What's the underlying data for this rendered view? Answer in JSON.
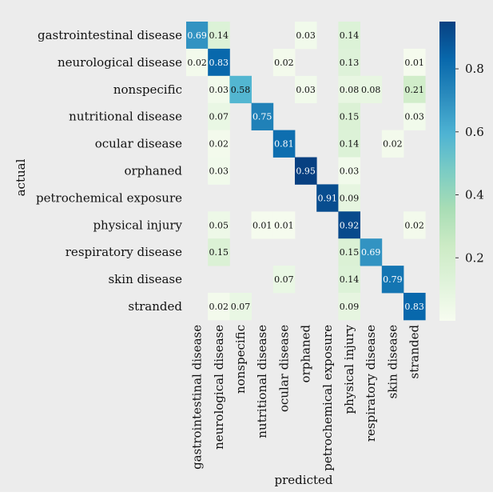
{
  "chart_data": {
    "type": "heatmap",
    "title": "",
    "xlabel": "predicted",
    "ylabel": "actual",
    "rows": [
      "gastrointestinal disease",
      "neurological disease",
      "nonspecific",
      "nutritional disease",
      "ocular disease",
      "orphaned",
      "petrochemical exposure",
      "physical injury",
      "respiratory disease",
      "skin disease",
      "stranded"
    ],
    "columns": [
      "gastrointestinal disease",
      "neurological disease",
      "nonspecific",
      "nutritional disease",
      "ocular disease",
      "orphaned",
      "petrochemical exposure",
      "physical injury",
      "respiratory disease",
      "skin disease",
      "stranded"
    ],
    "values": [
      [
        0.69,
        0.14,
        0,
        0,
        0,
        0.03,
        0,
        0.14,
        0,
        0,
        0
      ],
      [
        0.02,
        0.83,
        0,
        0,
        0.02,
        0,
        0,
        0.13,
        0,
        0,
        0.01
      ],
      [
        0,
        0.03,
        0.58,
        0,
        0,
        0.03,
        0,
        0.08,
        0.08,
        0,
        0.21
      ],
      [
        0,
        0.07,
        0,
        0.75,
        0,
        0,
        0,
        0.15,
        0,
        0,
        0.03
      ],
      [
        0,
        0.02,
        0,
        0,
        0.81,
        0,
        0,
        0.14,
        0,
        0.02,
        0
      ],
      [
        0,
        0.03,
        0,
        0,
        0,
        0.95,
        0,
        0.03,
        0,
        0,
        0
      ],
      [
        0,
        0,
        0,
        0,
        0,
        0,
        0.91,
        0.09,
        0,
        0,
        0
      ],
      [
        0,
        0.05,
        0,
        0.01,
        0.01,
        0,
        0,
        0.92,
        0,
        0,
        0.02
      ],
      [
        0,
        0.15,
        0,
        0,
        0,
        0,
        0,
        0.15,
        0.69,
        0,
        0
      ],
      [
        0,
        0,
        0,
        0,
        0.07,
        0,
        0,
        0.14,
        0,
        0.79,
        0
      ],
      [
        0,
        0.02,
        0.07,
        0,
        0,
        0,
        0,
        0.09,
        0,
        0,
        0.83
      ]
    ],
    "labels": [
      [
        "0.69",
        "0.14",
        "",
        "",
        "",
        "0.03",
        "",
        "0.14",
        "",
        "",
        ""
      ],
      [
        "0.02",
        "0.83",
        "",
        "",
        "0.02",
        "",
        "",
        "0.13",
        "",
        "",
        "0.01"
      ],
      [
        "",
        "0.03",
        "0.58",
        "",
        "",
        "0.03",
        "",
        "0.08",
        "0.08",
        "",
        "0.21"
      ],
      [
        "",
        "0.07",
        "",
        "0.75",
        "",
        "",
        "",
        "0.15",
        "",
        "",
        "0.03"
      ],
      [
        "",
        "0.02",
        "",
        "",
        "0.81",
        "",
        "",
        "0.14",
        "",
        "0.02",
        ""
      ],
      [
        "",
        "0.03",
        "",
        "",
        "",
        "0.95",
        "",
        "0.03",
        "",
        "",
        ""
      ],
      [
        "",
        "",
        "",
        "",
        "",
        "",
        "0.91",
        "0.09",
        "",
        "",
        ""
      ],
      [
        "",
        "0.05",
        "",
        "0.01",
        "0.01",
        "",
        "",
        "0.92",
        "",
        "",
        "0.02"
      ],
      [
        "",
        "0.15",
        "",
        "",
        "",
        "",
        "",
        "0.15",
        "0.69",
        "",
        ""
      ],
      [
        "",
        "",
        "",
        "",
        "0.07",
        "",
        "",
        "0.14",
        "",
        "0.79",
        ""
      ],
      [
        "",
        "0.02",
        "0.07",
        "",
        "",
        "",
        "",
        "0.09",
        "",
        "",
        "0.83"
      ]
    ],
    "colorbar": {
      "range": [
        0,
        0.95
      ],
      "ticks": [
        0.2,
        0.4,
        0.6,
        0.8
      ],
      "tick_labels": [
        "0.2",
        "0.4",
        "0.6",
        "0.8"
      ],
      "colormap": "GnBu",
      "stops": [
        "#f7fcf0",
        "#e0f3db",
        "#ccebc5",
        "#a8ddb5",
        "#7bccc4",
        "#4eb3d3",
        "#2b8cbe",
        "#0868ac",
        "#084081"
      ]
    },
    "grid": false,
    "legend": "right"
  }
}
